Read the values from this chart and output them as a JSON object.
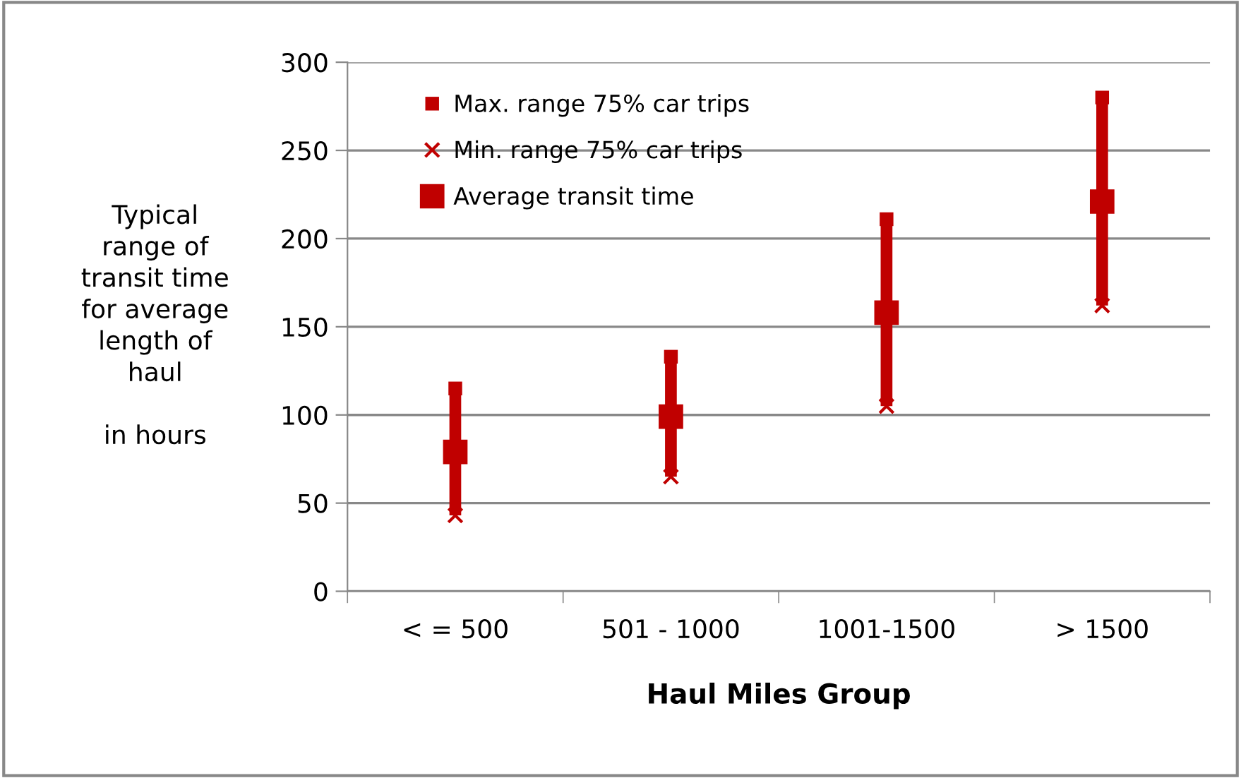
{
  "chart_data": {
    "type": "scatter",
    "xlabel": "Haul Miles Group",
    "ylabel": "Typical\nrange of\ntransit time\nfor average\nlength of\nhaul\n\nin hours",
    "categories": [
      "< = 500",
      "501 - 1000",
      "1001-1500",
      "> 1500"
    ],
    "series": [
      {
        "name": "Max. range 75% car trips",
        "color": "#c00000",
        "marker": "square",
        "values": [
          115,
          133,
          211,
          280
        ]
      },
      {
        "name": "Min. range 75% car trips",
        "color": "#c00000",
        "marker": "cross",
        "values": [
          43,
          65,
          105,
          162
        ]
      },
      {
        "name": "Average transit time",
        "color": "#c00000",
        "marker": "square",
        "values": [
          79,
          99,
          158,
          221
        ],
        "errors": [
          [
            36,
            36
          ],
          [
            34,
            34
          ],
          [
            53,
            53
          ],
          [
            59,
            59
          ]
        ]
      }
    ],
    "ylim": [
      0,
      300
    ],
    "yticks": [
      0,
      50,
      100,
      150,
      200,
      250,
      300
    ],
    "grid": "y",
    "legend": "top left"
  }
}
